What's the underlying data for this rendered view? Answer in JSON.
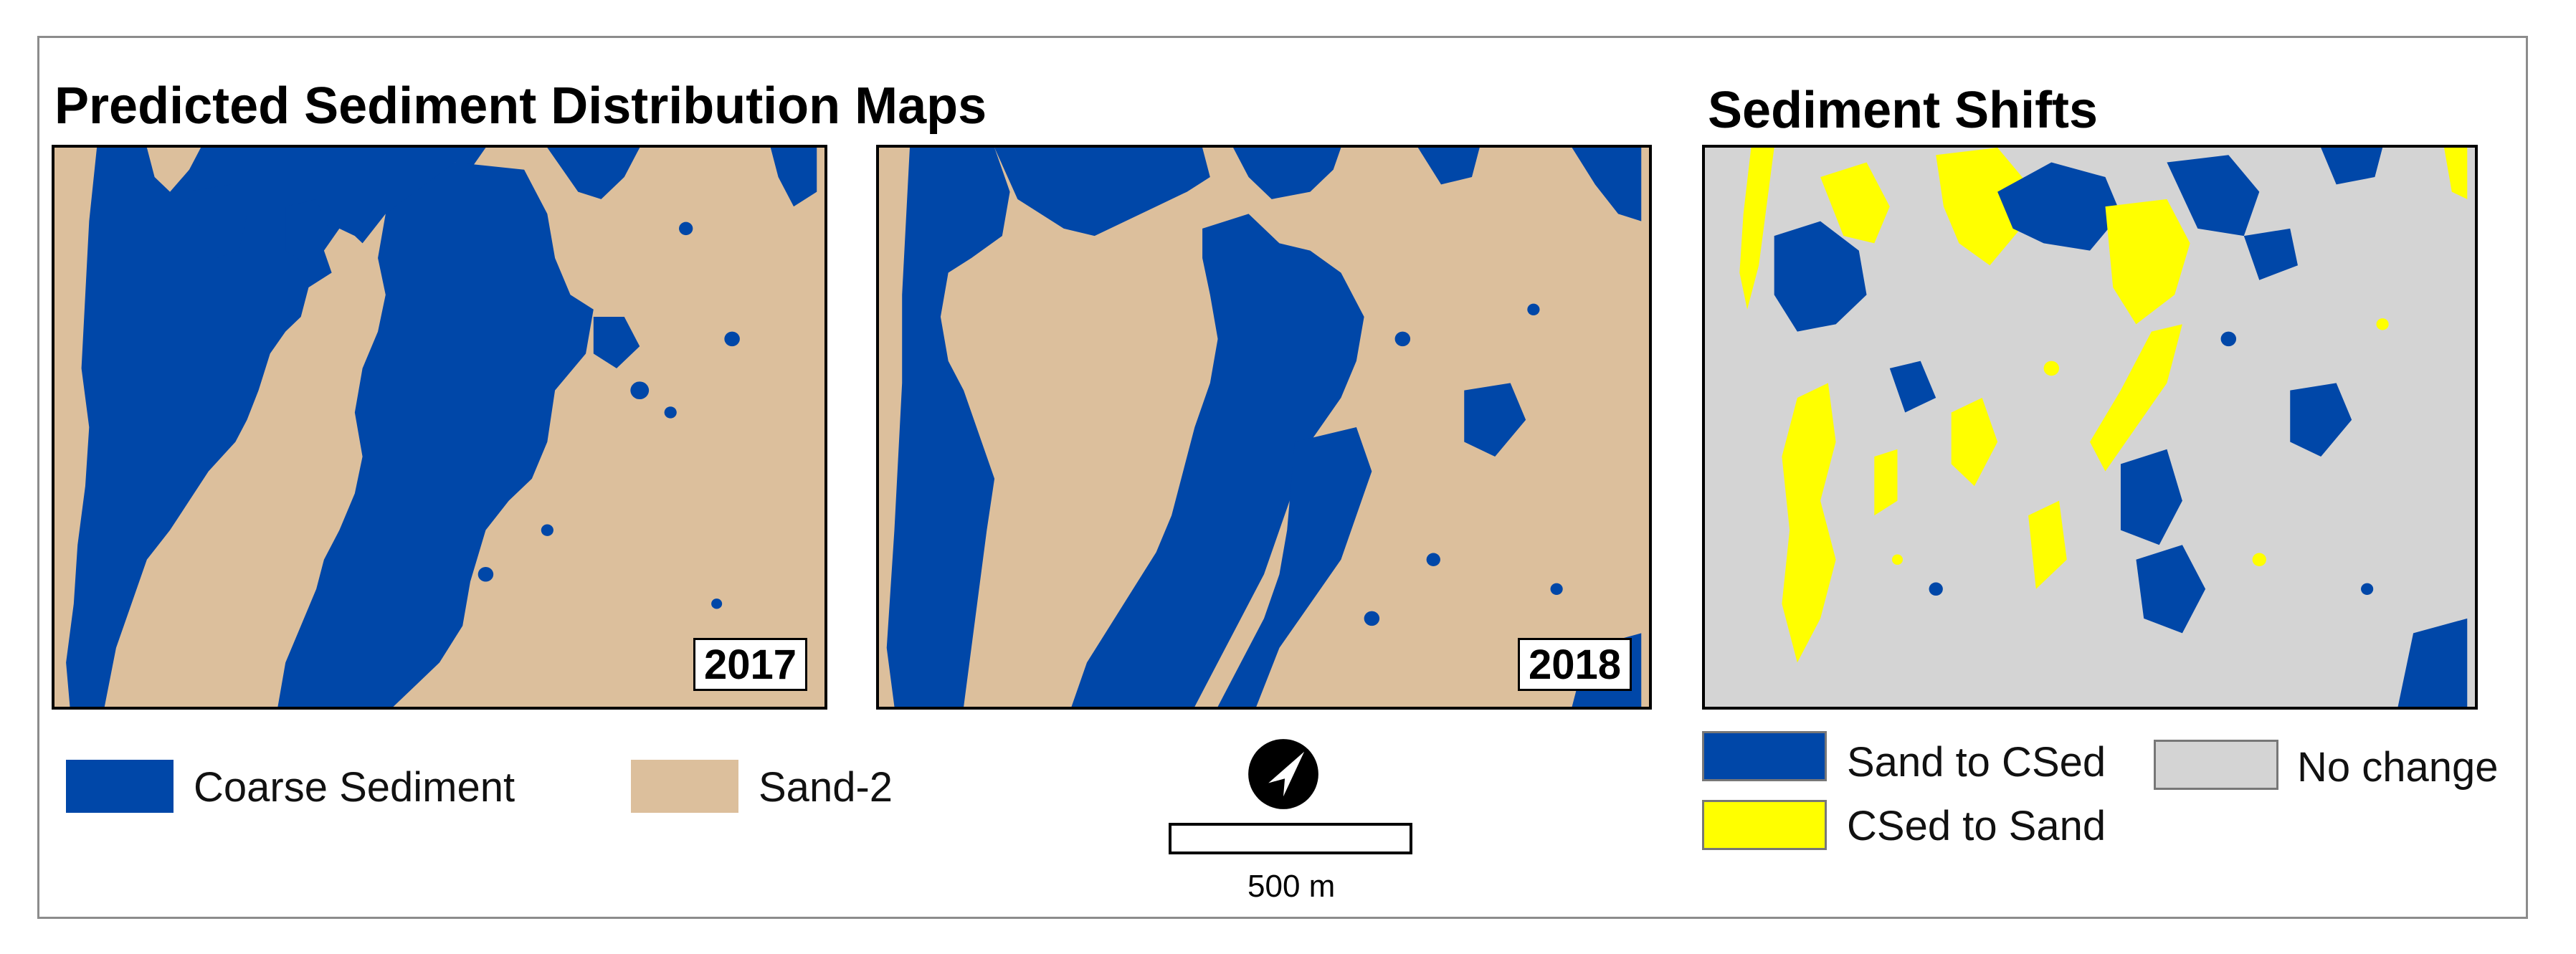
{
  "panels": {
    "left_title": "Predicted Sediment Distribution Maps",
    "right_title": "Sediment Shifts",
    "map_2017": {
      "year": "2017"
    },
    "map_2018": {
      "year": "2018"
    },
    "shift_map": {}
  },
  "legend_classes": {
    "coarse": {
      "label": "Coarse Sediment",
      "color": "#0047a8"
    },
    "sand": {
      "label": "Sand-2",
      "color": "#dcbf9c"
    }
  },
  "legend_shifts": {
    "sand_to_csed": {
      "label": "Sand to CSed",
      "color": "#0047a8"
    },
    "no_change": {
      "label": "No change",
      "color": "#d4d4d4"
    },
    "csed_to_sand": {
      "label": "CSed to Sand",
      "color": "#ffff00"
    }
  },
  "scale": {
    "label": "500 m"
  },
  "north_arrow": {
    "icon": "north-arrow-icon"
  }
}
